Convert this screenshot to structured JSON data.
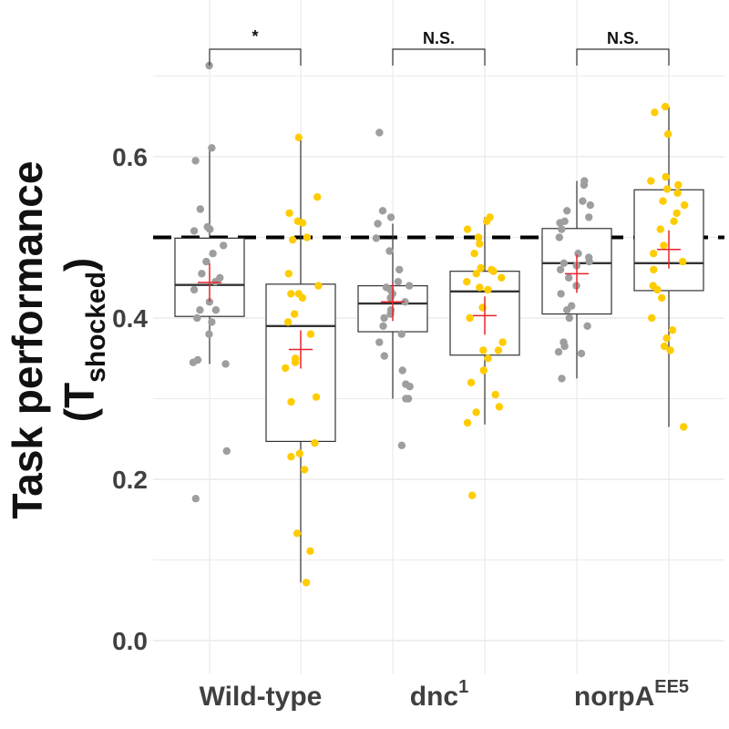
{
  "chart_data": {
    "type": "box",
    "ylabel": {
      "line1": "Task performance",
      "line2_main": "(T",
      "line2_sub": "shocked",
      "line2_end": ")"
    },
    "ylim": [
      -0.04,
      0.8
    ],
    "yticks": [
      0.0,
      0.2,
      0.4,
      0.6
    ],
    "ytick_labels": [
      "0.0",
      "0.2",
      "0.4",
      "0.6"
    ],
    "grid": true,
    "reference_line": 0.5,
    "colors": {
      "gray_points": "#9e9e9e",
      "yellow_points": "#ffcc00",
      "mean_marker": "#e8222a",
      "box_stroke": "#333333",
      "grid": "#ebebeb",
      "reference": "#000000"
    },
    "categories": [
      {
        "main": "Wild-type",
        "sup": ""
      },
      {
        "main": "dnc",
        "sup": "1"
      },
      {
        "main": "norpA",
        "sup": "EE5"
      }
    ],
    "groups": [
      {
        "category": 0,
        "color": "gray",
        "q1": 0.402,
        "median": 0.441,
        "q3": 0.499,
        "whisker_low": 0.343,
        "whisker_high": 0.61,
        "mean": 0.444,
        "points": [
          0.713,
          0.611,
          0.595,
          0.535,
          0.513,
          0.51,
          0.508,
          0.49,
          0.48,
          0.47,
          0.455,
          0.45,
          0.445,
          0.435,
          0.42,
          0.41,
          0.41,
          0.4,
          0.395,
          0.38,
          0.348,
          0.345,
          0.343,
          0.235,
          0.176
        ]
      },
      {
        "category": 0,
        "color": "yellow",
        "q1": 0.247,
        "median": 0.39,
        "q3": 0.442,
        "whisker_low": 0.072,
        "whisker_high": 0.624,
        "mean": 0.361,
        "points": [
          0.624,
          0.55,
          0.53,
          0.52,
          0.518,
          0.5,
          0.497,
          0.455,
          0.44,
          0.43,
          0.43,
          0.425,
          0.405,
          0.395,
          0.38,
          0.35,
          0.345,
          0.338,
          0.302,
          0.296,
          0.245,
          0.232,
          0.228,
          0.212,
          0.133,
          0.111,
          0.072
        ]
      },
      {
        "category": 1,
        "color": "gray",
        "q1": 0.383,
        "median": 0.418,
        "q3": 0.44,
        "whisker_low": 0.3,
        "whisker_high": 0.517,
        "mean": 0.42,
        "points": [
          0.63,
          0.533,
          0.525,
          0.517,
          0.499,
          0.483,
          0.46,
          0.445,
          0.44,
          0.438,
          0.435,
          0.43,
          0.425,
          0.42,
          0.41,
          0.405,
          0.4,
          0.39,
          0.38,
          0.37,
          0.353,
          0.335,
          0.318,
          0.315,
          0.3,
          0.3,
          0.242
        ]
      },
      {
        "category": 1,
        "color": "yellow",
        "q1": 0.354,
        "median": 0.433,
        "q3": 0.458,
        "whisker_low": 0.268,
        "whisker_high": 0.525,
        "mean": 0.403,
        "points": [
          0.525,
          0.52,
          0.51,
          0.5,
          0.492,
          0.48,
          0.462,
          0.46,
          0.458,
          0.455,
          0.45,
          0.445,
          0.438,
          0.435,
          0.413,
          0.4,
          0.37,
          0.36,
          0.36,
          0.35,
          0.335,
          0.32,
          0.305,
          0.29,
          0.283,
          0.27,
          0.18
        ]
      },
      {
        "category": 2,
        "color": "gray",
        "q1": 0.405,
        "median": 0.468,
        "q3": 0.511,
        "whisker_low": 0.325,
        "whisker_high": 0.57,
        "mean": 0.455,
        "points": [
          0.57,
          0.565,
          0.545,
          0.54,
          0.533,
          0.525,
          0.52,
          0.518,
          0.51,
          0.5,
          0.48,
          0.475,
          0.47,
          0.468,
          0.465,
          0.46,
          0.45,
          0.44,
          0.43,
          0.415,
          0.41,
          0.4,
          0.39,
          0.37,
          0.365,
          0.358,
          0.356,
          0.325
        ]
      },
      {
        "category": 2,
        "color": "yellow",
        "q1": 0.434,
        "median": 0.468,
        "q3": 0.559,
        "whisker_low": 0.265,
        "whisker_high": 0.662,
        "mean": 0.485,
        "points": [
          0.662,
          0.655,
          0.628,
          0.575,
          0.57,
          0.565,
          0.56,
          0.555,
          0.545,
          0.54,
          0.53,
          0.52,
          0.51,
          0.49,
          0.48,
          0.47,
          0.46,
          0.44,
          0.435,
          0.425,
          0.4,
          0.385,
          0.375,
          0.365,
          0.36,
          0.265
        ]
      }
    ],
    "significance": [
      {
        "label": "*",
        "left_group": 0,
        "right_group": 1
      },
      {
        "label": "N.S.",
        "left_group": 2,
        "right_group": 3
      },
      {
        "label": "N.S.",
        "left_group": 4,
        "right_group": 5
      }
    ]
  }
}
